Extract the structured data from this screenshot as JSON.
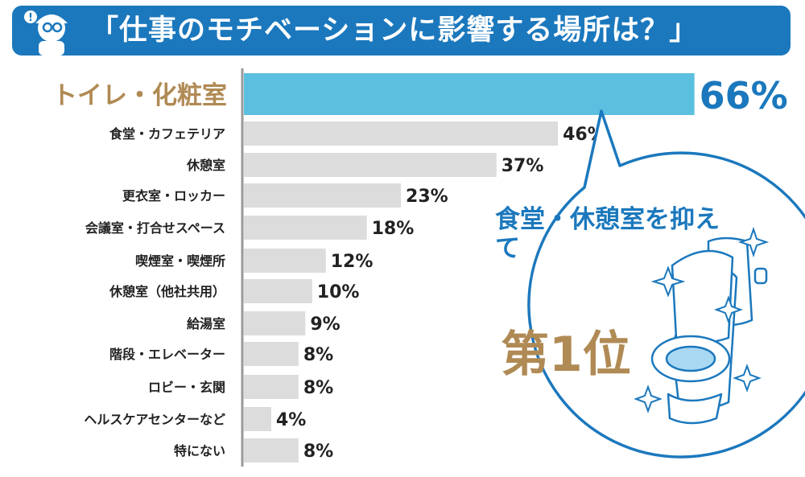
{
  "title": "「仕事のモチベーションに影響する場所は？」",
  "chart_data": {
    "type": "bar",
    "orientation": "horizontal",
    "categories": [
      "トイレ・化粧室",
      "食堂・カフェテリア",
      "休憩室",
      "更衣室・ロッカー",
      "会議室・打合せスペース",
      "喫煙室・喫煙所",
      "休憩室（他社共用）",
      "給湯室",
      "階段・エレベーター",
      "ロビー・玄関",
      "ヘルスケアセンターなど",
      "特にない"
    ],
    "values": [
      66,
      46,
      37,
      23,
      18,
      12,
      10,
      9,
      8,
      8,
      4,
      8
    ],
    "value_labels": [
      "66%",
      "46%",
      "37%",
      "23%",
      "18%",
      "12%",
      "10%",
      "9%",
      "8%",
      "8%",
      "4%",
      "8%"
    ],
    "unit": "%",
    "highlight_index": 0,
    "colors": {
      "highlight": "#5bc0e0",
      "bar": "#dcdcdc",
      "highlight_label": "#b08a54",
      "label": "#222222",
      "axis": "#999999",
      "accent": "#1b78bd"
    }
  },
  "callout": {
    "text": "食堂・休憩室を抑えて",
    "rank": "第1位"
  },
  "icons": {
    "mascot": "detective-icon",
    "toilet": "toilet-icon",
    "sparkle": "sparkle-icon"
  }
}
